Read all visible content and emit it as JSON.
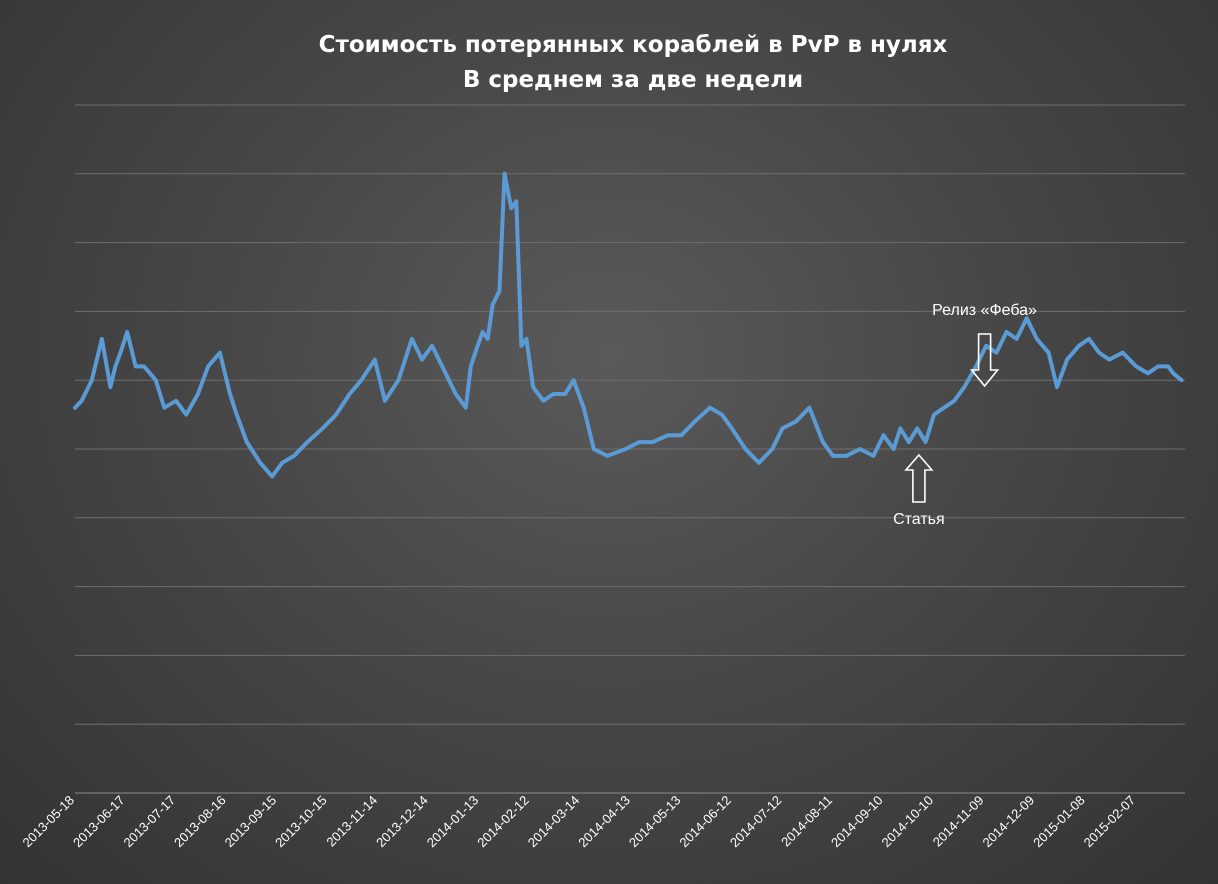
{
  "chart_data": {
    "type": "line",
    "title": "Стоимость потерянных кораблей в PvP в нулях",
    "subtitle": "В среднем за две недели",
    "xlabel": "",
    "ylabel": "",
    "x_tick_labels": [
      "2013-05-18",
      "2013-06-17",
      "2013-07-17",
      "2013-08-16",
      "2013-09-15",
      "2013-10-15",
      "2013-11-14",
      "2013-12-14",
      "2014-01-13",
      "2014-02-12",
      "2014-03-14",
      "2014-04-13",
      "2014-05-13",
      "2014-06-12",
      "2014-07-12",
      "2014-08-11",
      "2014-09-10",
      "2014-10-10",
      "2014-11-09",
      "2014-12-09",
      "2015-01-08",
      "2015-02-07"
    ],
    "x_range": [
      "2013-05-18",
      "2015-03-08"
    ],
    "y_range": [
      0,
      10
    ],
    "y_tick_labels_visible": false,
    "gridlines": [
      0,
      1,
      2,
      3,
      4,
      5,
      6,
      7,
      8,
      9,
      10
    ],
    "grid": true,
    "line_color": "#5b9bd5",
    "series": [
      {
        "x": [
          "2013-05-18",
          "2013-05-22",
          "2013-05-28",
          "2013-06-03",
          "2013-06-08",
          "2013-06-11",
          "2013-06-14",
          "2013-06-18",
          "2013-06-23",
          "2013-06-28",
          "2013-07-05",
          "2013-07-10",
          "2013-07-17",
          "2013-07-23",
          "2013-07-30",
          "2013-08-05",
          "2013-08-12",
          "2013-08-18",
          "2013-08-22",
          "2013-08-28",
          "2013-09-05",
          "2013-09-12",
          "2013-09-18",
          "2013-09-25",
          "2013-10-03",
          "2013-10-12",
          "2013-10-20",
          "2013-10-28",
          "2013-11-04",
          "2013-11-12",
          "2013-11-18",
          "2013-11-26",
          "2013-12-04",
          "2013-12-10",
          "2013-12-16",
          "2013-12-24",
          "2013-12-30",
          "2014-01-05",
          "2014-01-08",
          "2014-01-12",
          "2014-01-15",
          "2014-01-18",
          "2014-01-21",
          "2014-01-25",
          "2014-01-28",
          "2014-02-01",
          "2014-02-04",
          "2014-02-07",
          "2014-02-10",
          "2014-02-14",
          "2014-02-20",
          "2014-02-26",
          "2014-03-05",
          "2014-03-10",
          "2014-03-16",
          "2014-03-22",
          "2014-03-30",
          "2014-04-10",
          "2014-04-18",
          "2014-04-26",
          "2014-05-05",
          "2014-05-13",
          "2014-05-21",
          "2014-05-30",
          "2014-06-06",
          "2014-06-12",
          "2014-06-20",
          "2014-06-28",
          "2014-07-06",
          "2014-07-12",
          "2014-07-20",
          "2014-07-28",
          "2014-08-05",
          "2014-08-11",
          "2014-08-19",
          "2014-08-27",
          "2014-09-04",
          "2014-09-10",
          "2014-09-16",
          "2014-09-20",
          "2014-09-25",
          "2014-09-30",
          "2014-10-05",
          "2014-10-10",
          "2014-10-16",
          "2014-10-22",
          "2014-10-28",
          "2014-11-04",
          "2014-11-10",
          "2014-11-16",
          "2014-11-22",
          "2014-11-28",
          "2014-12-04",
          "2014-12-10",
          "2014-12-17",
          "2014-12-22",
          "2014-12-28",
          "2015-01-04",
          "2015-01-10",
          "2015-01-16",
          "2015-01-22",
          "2015-01-30",
          "2015-02-07",
          "2015-02-14",
          "2015-02-20",
          "2015-02-26",
          "2015-03-01",
          "2015-03-06"
        ],
        "y": [
          5.6,
          5.7,
          6.0,
          6.6,
          5.9,
          6.2,
          6.4,
          6.7,
          6.2,
          6.2,
          6.0,
          5.6,
          5.7,
          5.5,
          5.8,
          6.2,
          6.4,
          5.8,
          5.5,
          5.1,
          4.8,
          4.6,
          4.8,
          4.9,
          5.1,
          5.3,
          5.5,
          5.8,
          6.0,
          6.3,
          5.7,
          6.0,
          6.6,
          6.3,
          6.5,
          6.1,
          5.8,
          5.6,
          6.2,
          6.5,
          6.7,
          6.6,
          7.1,
          7.3,
          9.0,
          8.5,
          8.6,
          6.5,
          6.6,
          5.9,
          5.7,
          5.8,
          5.8,
          6.0,
          5.6,
          5.0,
          4.9,
          5.0,
          5.1,
          5.1,
          5.2,
          5.2,
          5.4,
          5.6,
          5.5,
          5.3,
          5.0,
          4.8,
          5.0,
          5.3,
          5.4,
          5.6,
          5.1,
          4.9,
          4.9,
          5.0,
          4.9,
          5.2,
          5.0,
          5.3,
          5.1,
          5.3,
          5.1,
          5.5,
          5.6,
          5.7,
          5.9,
          6.2,
          6.5,
          6.4,
          6.7,
          6.6,
          6.9,
          6.6,
          6.4,
          5.9,
          6.3,
          6.5,
          6.6,
          6.4,
          6.3,
          6.4,
          6.2,
          6.1,
          6.2,
          6.2,
          6.1,
          6.0
        ]
      }
    ],
    "annotations": [
      {
        "text": "Релиз «Феба»",
        "x": "2014-11-09",
        "arrow": "down"
      },
      {
        "text": "Статья",
        "x": "2014-10-01",
        "arrow": "up"
      }
    ]
  }
}
